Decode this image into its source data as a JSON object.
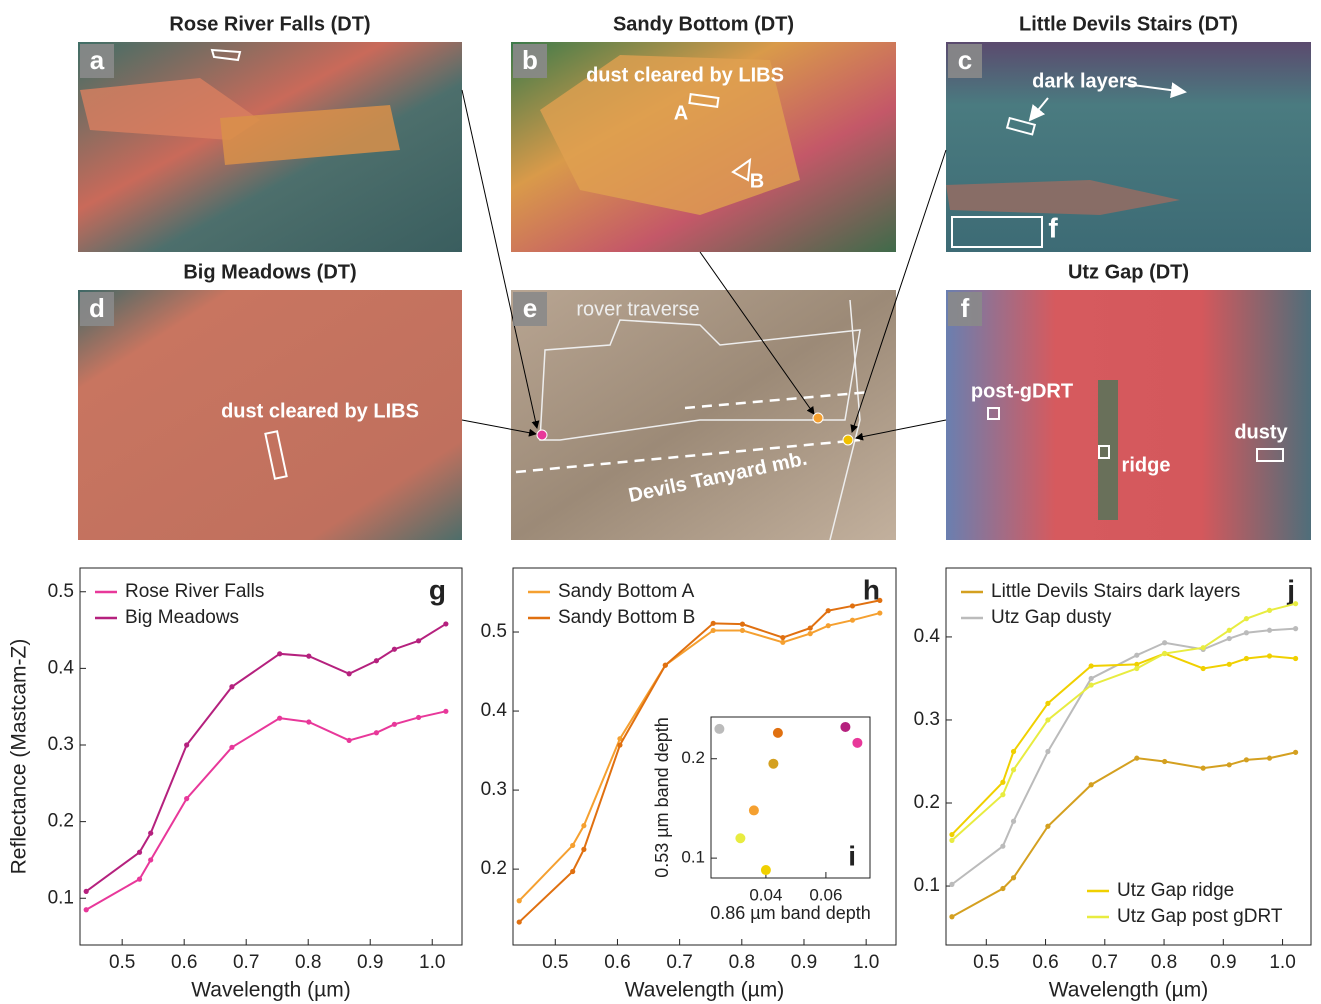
{
  "panels": [
    {
      "letter": "a",
      "title": "Rose River Falls (DT)",
      "annotations": []
    },
    {
      "letter": "b",
      "title": "Sandy Bottom (DT)",
      "annotations": [
        "dust cleared by LIBS",
        "A",
        "B"
      ]
    },
    {
      "letter": "c",
      "title": "Little Devils Stairs (DT)",
      "annotations": [
        "dark layers",
        "f"
      ]
    },
    {
      "letter": "d",
      "title": "Big Meadows (DT)",
      "annotations": [
        "dust cleared by LIBS"
      ]
    },
    {
      "letter": "e",
      "annotations": [
        "rover traverse",
        "Devils Tanyard mb."
      ]
    },
    {
      "letter": "f",
      "title": "Utz Gap (DT)",
      "annotations": [
        "post-gDRT",
        "ridge",
        "dusty"
      ]
    }
  ],
  "chart_data": [
    {
      "type": "line",
      "label": "g",
      "y_label": "Reflectance (Mastcam-Z)",
      "x_label": "Wavelength (µm)",
      "xlim": [
        0.432,
        1.048
      ],
      "ylim": [
        0.039,
        0.531
      ],
      "xticks": [
        0.5,
        0.6,
        0.7,
        0.8,
        0.9,
        {
          "value": 1,
          "label": "1.0"
        }
      ],
      "yticks": [
        0.1,
        0.2,
        0.3,
        0.4,
        0.5
      ],
      "x": [
        0.442,
        0.528,
        0.546,
        0.604,
        0.677,
        0.754,
        0.801,
        0.866,
        0.91,
        0.939,
        0.978,
        1.022
      ],
      "legend": "upper left",
      "series": [
        {
          "name": "Rose River Falls",
          "color": "#e8389a",
          "values": [
            0.085,
            0.125,
            0.15,
            0.23,
            0.297,
            0.335,
            0.33,
            0.306,
            0.316,
            0.327,
            0.336,
            0.344
          ]
        },
        {
          "name": "Big Meadows",
          "color": "#b5217e",
          "values": [
            0.109,
            0.16,
            0.185,
            0.3,
            0.376,
            0.419,
            0.416,
            0.393,
            0.41,
            0.425,
            0.436,
            0.458
          ]
        }
      ]
    },
    {
      "type": "line",
      "label": "h",
      "x_label": "Wavelength (µm)",
      "xlim": [
        0.432,
        1.048
      ],
      "ylim": [
        0.104,
        0.581
      ],
      "xticks": [
        0.5,
        0.6,
        0.7,
        0.8,
        0.9,
        {
          "value": 1,
          "label": "1.0"
        }
      ],
      "yticks": [
        0.2,
        0.3,
        0.4,
        0.5
      ],
      "x": [
        0.442,
        0.528,
        0.546,
        0.604,
        0.677,
        0.754,
        0.801,
        0.866,
        0.91,
        0.939,
        0.978,
        1.022
      ],
      "legend": "upper left",
      "series": [
        {
          "name": "Sandy Bottom A",
          "color": "#f5a030",
          "values": [
            0.16,
            0.23,
            0.255,
            0.365,
            0.458,
            0.502,
            0.502,
            0.487,
            0.498,
            0.508,
            0.515,
            0.524
          ]
        },
        {
          "name": "Sandy Bottom B",
          "color": "#e07010",
          "values": [
            0.133,
            0.197,
            0.225,
            0.357,
            0.458,
            0.511,
            0.51,
            0.493,
            0.505,
            0.527,
            0.533,
            0.54
          ]
        }
      ]
    },
    {
      "type": "scatter",
      "label": "i",
      "x_label": "0.86 µm band depth",
      "y_label": "0.53 µm band depth",
      "xlim": [
        0.0217,
        0.0747
      ],
      "ylim": [
        0.08,
        0.242
      ],
      "xticks": [
        0.04,
        0.06
      ],
      "yticks": [
        0.1,
        0.2
      ],
      "x": [
        0.0245,
        0.044,
        0.0425,
        0.036,
        0.0315,
        0.04,
        0.0665,
        0.0705
      ],
      "values": [
        0.23,
        0.226,
        0.195,
        0.148,
        0.12,
        0.088,
        0.232,
        0.216
      ],
      "colors": [
        "#bbbbbb",
        "#e07010",
        "#d4a020",
        "#f5a030",
        "#e8ec40",
        "#f0d000",
        "#b5217e",
        "#e8389a"
      ]
    },
    {
      "type": "line",
      "label": "j",
      "x_label": "Wavelength (µm)",
      "xlim": [
        0.432,
        1.048
      ],
      "ylim": [
        0.029,
        0.483
      ],
      "xticks": [
        0.5,
        0.6,
        0.7,
        0.8,
        0.9,
        {
          "value": 1,
          "label": "1.0"
        }
      ],
      "yticks": [
        0.1,
        0.2,
        0.3,
        0.4
      ],
      "x": [
        0.442,
        0.528,
        0.546,
        0.604,
        0.677,
        0.754,
        0.801,
        0.866,
        0.91,
        0.939,
        0.978,
        1.022
      ],
      "series": [
        {
          "name": "Little Devils Stairs dark layers",
          "color": "#d4a020",
          "legend": "upper left",
          "values": [
            0.063,
            0.097,
            0.11,
            0.172,
            0.222,
            0.254,
            0.25,
            0.242,
            0.246,
            0.252,
            0.254,
            0.261
          ]
        },
        {
          "name": "Utz Gap dusty",
          "color": "#bbbbbb",
          "legend": "upper left",
          "values": [
            0.102,
            0.148,
            0.178,
            0.262,
            0.35,
            0.378,
            0.393,
            0.385,
            0.398,
            0.405,
            0.408,
            0.41
          ]
        },
        {
          "name": "Utz Gap ridge",
          "color": "#f0d000",
          "legend": "lower right",
          "values": [
            0.162,
            0.225,
            0.262,
            0.32,
            0.365,
            0.367,
            0.38,
            0.362,
            0.367,
            0.374,
            0.377,
            0.374
          ]
        },
        {
          "name": "Utz Gap post gDRT",
          "color": "#e8ec40",
          "legend": "lower right",
          "values": [
            0.155,
            0.21,
            0.24,
            0.3,
            0.342,
            0.362,
            0.38,
            0.387,
            0.408,
            0.422,
            0.432,
            0.44
          ]
        }
      ]
    }
  ]
}
